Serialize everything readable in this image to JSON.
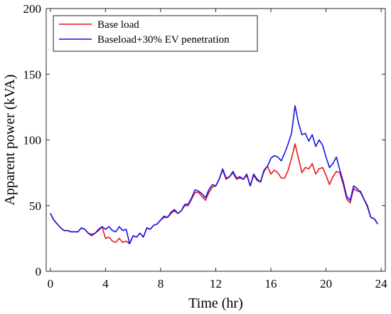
{
  "chart_data": {
    "type": "line",
    "title": "",
    "xlabel": "Time (hr)",
    "ylabel": "Apparent power (kVA)",
    "xlim": [
      -0.3,
      24.3
    ],
    "ylim": [
      0,
      200
    ],
    "xticks": [
      0,
      4,
      8,
      12,
      16,
      20,
      24
    ],
    "yticks": [
      0,
      50,
      100,
      150,
      200
    ],
    "x_tick_labels": [
      "0",
      "4",
      "8",
      "12",
      "16",
      "20",
      "24"
    ],
    "y_tick_labels": [
      "0",
      "50",
      "100",
      "150",
      "200"
    ],
    "grid": false,
    "legend_position": "top-left",
    "series": [
      {
        "name": "Base load",
        "color": "#e8171e",
        "points": [
          [
            0.0,
            44
          ],
          [
            0.25,
            39
          ],
          [
            0.5,
            36
          ],
          [
            0.75,
            33
          ],
          [
            1.0,
            31
          ],
          [
            1.25,
            31
          ],
          [
            1.5,
            30
          ],
          [
            1.75,
            30
          ],
          [
            2.0,
            30
          ],
          [
            2.25,
            33
          ],
          [
            2.5,
            32
          ],
          [
            2.75,
            29
          ],
          [
            3.0,
            27
          ],
          [
            3.25,
            29
          ],
          [
            3.5,
            31
          ],
          [
            3.75,
            34
          ],
          [
            4.0,
            25
          ],
          [
            4.25,
            26
          ],
          [
            4.5,
            23
          ],
          [
            4.75,
            22
          ],
          [
            5.0,
            25
          ],
          [
            5.25,
            22
          ],
          [
            5.5,
            23
          ],
          [
            5.75,
            21
          ],
          [
            6.0,
            27
          ],
          [
            6.25,
            26
          ],
          [
            6.5,
            29
          ],
          [
            6.75,
            26
          ],
          [
            7.0,
            33
          ],
          [
            7.25,
            32
          ],
          [
            7.5,
            35
          ],
          [
            7.75,
            36
          ],
          [
            8.0,
            39
          ],
          [
            8.25,
            41
          ],
          [
            8.5,
            41
          ],
          [
            8.75,
            44
          ],
          [
            9.0,
            46
          ],
          [
            9.25,
            44
          ],
          [
            9.5,
            46
          ],
          [
            9.75,
            50
          ],
          [
            10.0,
            50
          ],
          [
            10.25,
            55
          ],
          [
            10.5,
            60
          ],
          [
            10.75,
            60
          ],
          [
            11.0,
            57
          ],
          [
            11.25,
            54
          ],
          [
            11.5,
            60
          ],
          [
            11.75,
            64
          ],
          [
            12.0,
            65
          ],
          [
            12.25,
            70
          ],
          [
            12.5,
            77
          ],
          [
            12.75,
            70
          ],
          [
            13.0,
            72
          ],
          [
            13.25,
            75
          ],
          [
            13.5,
            70
          ],
          [
            13.75,
            71
          ],
          [
            14.0,
            70
          ],
          [
            14.25,
            73
          ],
          [
            14.5,
            65
          ],
          [
            14.75,
            73
          ],
          [
            15.0,
            69
          ],
          [
            15.25,
            68
          ],
          [
            15.5,
            76
          ],
          [
            15.75,
            80
          ],
          [
            16.0,
            74
          ],
          [
            16.25,
            77
          ],
          [
            16.5,
            75
          ],
          [
            16.75,
            71
          ],
          [
            17.0,
            71
          ],
          [
            17.25,
            77
          ],
          [
            17.5,
            86
          ],
          [
            17.75,
            97
          ],
          [
            18.0,
            86
          ],
          [
            18.25,
            75
          ],
          [
            18.5,
            79
          ],
          [
            18.75,
            78
          ],
          [
            19.0,
            82
          ],
          [
            19.25,
            74
          ],
          [
            19.5,
            78
          ],
          [
            19.75,
            79
          ],
          [
            20.0,
            73
          ],
          [
            20.25,
            66
          ],
          [
            20.5,
            72
          ],
          [
            20.75,
            76
          ],
          [
            21.0,
            75
          ],
          [
            21.25,
            66
          ],
          [
            21.5,
            55
          ],
          [
            21.75,
            52
          ],
          [
            22.0,
            63
          ],
          [
            22.25,
            61
          ],
          [
            22.5,
            61
          ],
          [
            22.75,
            55
          ],
          [
            23.0,
            49
          ],
          [
            23.25,
            41
          ],
          [
            23.5,
            40
          ],
          [
            23.75,
            36
          ]
        ]
      },
      {
        "name": "Baseload+30% EV penetration",
        "color": "#1414e6",
        "points": [
          [
            0.0,
            44
          ],
          [
            0.25,
            39
          ],
          [
            0.5,
            36
          ],
          [
            0.75,
            33
          ],
          [
            1.0,
            31
          ],
          [
            1.25,
            31
          ],
          [
            1.5,
            30
          ],
          [
            1.75,
            30
          ],
          [
            2.0,
            30
          ],
          [
            2.25,
            33
          ],
          [
            2.5,
            32
          ],
          [
            2.75,
            29
          ],
          [
            3.0,
            28
          ],
          [
            3.25,
            29
          ],
          [
            3.5,
            32
          ],
          [
            3.75,
            34
          ],
          [
            4.0,
            32
          ],
          [
            4.25,
            34
          ],
          [
            4.5,
            31
          ],
          [
            4.75,
            30
          ],
          [
            5.0,
            34
          ],
          [
            5.25,
            31
          ],
          [
            5.5,
            32
          ],
          [
            5.75,
            21
          ],
          [
            6.0,
            27
          ],
          [
            6.25,
            26
          ],
          [
            6.5,
            29
          ],
          [
            6.75,
            26
          ],
          [
            7.0,
            33
          ],
          [
            7.25,
            32
          ],
          [
            7.5,
            35
          ],
          [
            7.75,
            36
          ],
          [
            8.0,
            39
          ],
          [
            8.25,
            42
          ],
          [
            8.5,
            41
          ],
          [
            8.75,
            45
          ],
          [
            9.0,
            47
          ],
          [
            9.25,
            44
          ],
          [
            9.5,
            46
          ],
          [
            9.75,
            51
          ],
          [
            10.0,
            51
          ],
          [
            10.25,
            56
          ],
          [
            10.5,
            62
          ],
          [
            10.75,
            61
          ],
          [
            11.0,
            59
          ],
          [
            11.25,
            56
          ],
          [
            11.5,
            62
          ],
          [
            11.75,
            66
          ],
          [
            12.0,
            65
          ],
          [
            12.25,
            70
          ],
          [
            12.5,
            78
          ],
          [
            12.75,
            71
          ],
          [
            13.0,
            72
          ],
          [
            13.25,
            76
          ],
          [
            13.5,
            71
          ],
          [
            13.75,
            72
          ],
          [
            14.0,
            70
          ],
          [
            14.25,
            74
          ],
          [
            14.5,
            65
          ],
          [
            14.75,
            74
          ],
          [
            15.0,
            70
          ],
          [
            15.25,
            68
          ],
          [
            15.5,
            77
          ],
          [
            15.75,
            80
          ],
          [
            16.0,
            86
          ],
          [
            16.25,
            88
          ],
          [
            16.5,
            87
          ],
          [
            16.75,
            84
          ],
          [
            17.0,
            90
          ],
          [
            17.25,
            97
          ],
          [
            17.5,
            105
          ],
          [
            17.75,
            126
          ],
          [
            18.0,
            113
          ],
          [
            18.25,
            104
          ],
          [
            18.5,
            105
          ],
          [
            18.75,
            99
          ],
          [
            19.0,
            104
          ],
          [
            19.25,
            95
          ],
          [
            19.5,
            100
          ],
          [
            19.75,
            96
          ],
          [
            20.0,
            87
          ],
          [
            20.25,
            79
          ],
          [
            20.5,
            82
          ],
          [
            20.75,
            87
          ],
          [
            21.0,
            77
          ],
          [
            21.25,
            68
          ],
          [
            21.5,
            57
          ],
          [
            21.75,
            54
          ],
          [
            22.0,
            65
          ],
          [
            22.25,
            63
          ],
          [
            22.5,
            60
          ],
          [
            22.75,
            55
          ],
          [
            23.0,
            50
          ],
          [
            23.25,
            41
          ],
          [
            23.5,
            40
          ],
          [
            23.75,
            36
          ]
        ]
      }
    ]
  }
}
